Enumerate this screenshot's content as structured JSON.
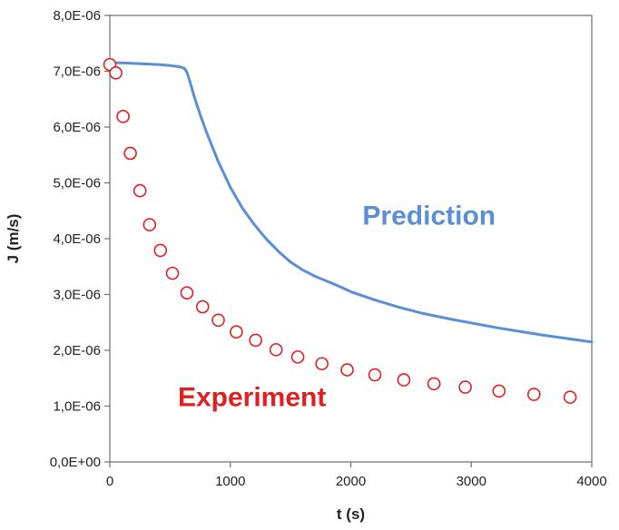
{
  "chart_data": {
    "type": "line",
    "title": "",
    "xlabel": "t (s)",
    "ylabel": "J (m/s)",
    "xlim": [
      0,
      4000
    ],
    "ylim": [
      0,
      8e-06
    ],
    "x_ticks": [
      0,
      1000,
      2000,
      3000,
      4000
    ],
    "x_tick_labels": [
      "0",
      "1000",
      "2000",
      "3000",
      "4000"
    ],
    "y_ticks": [
      0,
      1e-06,
      2e-06,
      3e-06,
      4e-06,
      5e-06,
      6e-06,
      7e-06,
      8e-06
    ],
    "y_tick_labels": [
      "0,0E+00",
      "1,0E-06",
      "2,0E-06",
      "3,0E-06",
      "4,0E-06",
      "5,0E-06",
      "6,0E-06",
      "7,0E-06",
      "8,0E-06"
    ],
    "grid": false,
    "legend": "none",
    "series": [
      {
        "style": "line",
        "color": "#5b8fd4",
        "x": [
          0,
          100,
          200,
          300,
          400,
          500,
          580,
          620,
          640,
          660,
          700,
          750,
          800,
          900,
          1000,
          1100,
          1200,
          1300,
          1400,
          1500,
          1600,
          1700,
          1800,
          1900,
          2000,
          2200,
          2400,
          2600,
          2800,
          3000,
          3200,
          3400,
          3600,
          3800,
          4000
        ],
        "y": [
          7.15e-06,
          7.15e-06,
          7.14e-06,
          7.13e-06,
          7.12e-06,
          7.1e-06,
          7.08e-06,
          7.05e-06,
          6.98e-06,
          6.85e-06,
          6.55e-06,
          6.22e-06,
          5.92e-06,
          5.38e-06,
          4.92e-06,
          4.55e-06,
          4.25e-06,
          3.99e-06,
          3.77e-06,
          3.58e-06,
          3.44e-06,
          3.33e-06,
          3.24e-06,
          3.15e-06,
          3.05e-06,
          2.9e-06,
          2.77e-06,
          2.66e-06,
          2.57e-06,
          2.49e-06,
          2.41e-06,
          2.34e-06,
          2.27e-06,
          2.21e-06,
          2.15e-06
        ]
      },
      {
        "style": "markers",
        "color": "#e02020",
        "x": [
          0,
          50,
          110,
          170,
          250,
          330,
          420,
          520,
          640,
          770,
          900,
          1050,
          1210,
          1380,
          1560,
          1760,
          1970,
          2200,
          2440,
          2690,
          2950,
          3230,
          3520,
          3820
        ],
        "y": [
          7.12e-06,
          6.97e-06,
          6.19e-06,
          5.53e-06,
          4.86e-06,
          4.25e-06,
          3.79e-06,
          3.38e-06,
          3.03e-06,
          2.78e-06,
          2.54e-06,
          2.33e-06,
          2.18e-06,
          2.01e-06,
          1.88e-06,
          1.76e-06,
          1.65e-06,
          1.56e-06,
          1.47e-06,
          1.4e-06,
          1.34e-06,
          1.27e-06,
          1.21e-06,
          1.16e-06
        ]
      }
    ],
    "annotations": [
      {
        "text": "Prediction",
        "x": 2650,
        "y": 4.25e-06,
        "color": "#5b8fd4"
      },
      {
        "text": "Experiment",
        "x": 1180,
        "y": 1e-06,
        "color": "#e02020"
      }
    ]
  }
}
